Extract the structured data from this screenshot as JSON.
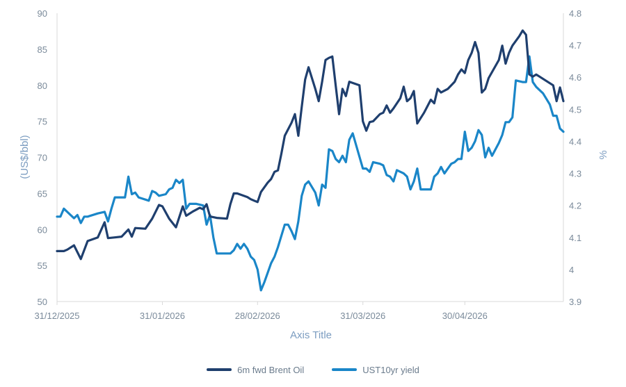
{
  "chart_data": {
    "type": "line",
    "xlabel": "Axis Title",
    "ylabel_left": "(US$/bbl)",
    "ylabel_right": "%",
    "ylim_left": [
      50,
      90
    ],
    "ylim_right": [
      3.9,
      4.8
    ],
    "x_ticks": [
      "31/12/2025",
      "31/01/2026",
      "28/02/2026",
      "31/03/2026",
      "30/04/2026"
    ],
    "y_ticks_left": [
      "50",
      "55",
      "60",
      "65",
      "70",
      "75",
      "80",
      "85",
      "90"
    ],
    "y_ticks_right": [
      "3.9",
      "4",
      "4.1",
      "4.2",
      "4.3",
      "4.4",
      "4.5",
      "4.6",
      "4.7",
      "4.8"
    ],
    "legend_position": "bottom",
    "grid": false,
    "series": [
      {
        "name": "6m fwd Brent Oil",
        "axis": "left",
        "color": "#1f3f6e",
        "points": [
          [
            "31/12/2025",
            57.0
          ],
          [
            "02/01/2026",
            57.0
          ],
          [
            "03/01/2026",
            57.2
          ],
          [
            "05/01/2026",
            57.8
          ],
          [
            "07/01/2026",
            55.9
          ],
          [
            "09/01/2026",
            58.4
          ],
          [
            "12/01/2026",
            58.9
          ],
          [
            "14/01/2026",
            61.0
          ],
          [
            "15/01/2026",
            58.8
          ],
          [
            "17/01/2026",
            58.9
          ],
          [
            "19/01/2026",
            59.0
          ],
          [
            "21/01/2026",
            60.0
          ],
          [
            "22/01/2026",
            59.0
          ],
          [
            "23/01/2026",
            60.2
          ],
          [
            "26/01/2026",
            60.1
          ],
          [
            "28/01/2026",
            61.5
          ],
          [
            "30/01/2026",
            63.4
          ],
          [
            "31/01/2026",
            63.2
          ],
          [
            "02/02/2026",
            61.5
          ],
          [
            "04/02/2026",
            60.3
          ],
          [
            "06/02/2026",
            63.2
          ],
          [
            "07/02/2026",
            61.9
          ],
          [
            "09/02/2026",
            62.5
          ],
          [
            "11/02/2026",
            63.0
          ],
          [
            "12/02/2026",
            62.8
          ],
          [
            "13/02/2026",
            63.5
          ],
          [
            "14/02/2026",
            61.8
          ],
          [
            "16/02/2026",
            61.6
          ],
          [
            "19/02/2026",
            61.5
          ],
          [
            "20/02/2026",
            63.5
          ],
          [
            "21/02/2026",
            65.0
          ],
          [
            "22/02/2026",
            65.0
          ],
          [
            "25/02/2026",
            64.5
          ],
          [
            "26/02/2026",
            64.2
          ],
          [
            "27/02/2026",
            64.0
          ],
          [
            "28/02/2026",
            63.8
          ],
          [
            "01/03/2026",
            65.2
          ],
          [
            "03/03/2026",
            66.5
          ],
          [
            "04/03/2026",
            67.0
          ],
          [
            "05/03/2026",
            68.0
          ],
          [
            "06/03/2026",
            68.2
          ],
          [
            "07/03/2026",
            70.5
          ],
          [
            "08/03/2026",
            73.0
          ],
          [
            "10/03/2026",
            74.8
          ],
          [
            "11/03/2026",
            76.0
          ],
          [
            "12/03/2026",
            73.0
          ],
          [
            "13/03/2026",
            77.0
          ],
          [
            "14/03/2026",
            80.8
          ],
          [
            "15/03/2026",
            82.5
          ],
          [
            "17/03/2026",
            79.5
          ],
          [
            "18/03/2026",
            77.8
          ],
          [
            "19/03/2026",
            80.5
          ],
          [
            "20/03/2026",
            83.5
          ],
          [
            "21/03/2026",
            83.8
          ],
          [
            "22/03/2026",
            84.0
          ],
          [
            "23/03/2026",
            80.0
          ],
          [
            "24/03/2026",
            76.0
          ],
          [
            "25/03/2026",
            79.5
          ],
          [
            "26/03/2026",
            78.5
          ],
          [
            "27/03/2026",
            80.5
          ],
          [
            "30/03/2026",
            80.0
          ],
          [
            "31/03/2026",
            75.0
          ],
          [
            "01/04/2026",
            73.7
          ],
          [
            "02/04/2026",
            74.9
          ],
          [
            "03/04/2026",
            75.0
          ],
          [
            "05/04/2026",
            76.0
          ],
          [
            "06/04/2026",
            76.2
          ],
          [
            "07/04/2026",
            77.2
          ],
          [
            "08/04/2026",
            76.2
          ],
          [
            "09/04/2026",
            76.8
          ],
          [
            "11/04/2026",
            78.2
          ],
          [
            "12/04/2026",
            79.8
          ],
          [
            "13/04/2026",
            77.8
          ],
          [
            "14/04/2026",
            78.2
          ],
          [
            "15/04/2026",
            79.2
          ],
          [
            "16/04/2026",
            74.7
          ],
          [
            "18/04/2026",
            76.2
          ],
          [
            "20/04/2026",
            78.0
          ],
          [
            "21/04/2026",
            77.5
          ],
          [
            "22/04/2026",
            79.5
          ],
          [
            "23/04/2026",
            79.0
          ],
          [
            "25/04/2026",
            79.5
          ],
          [
            "27/04/2026",
            80.5
          ],
          [
            "28/04/2026",
            81.5
          ],
          [
            "29/04/2026",
            82.2
          ],
          [
            "30/04/2026",
            81.7
          ],
          [
            "01/05/2026",
            83.5
          ],
          [
            "02/05/2026",
            84.5
          ],
          [
            "03/05/2026",
            86.0
          ],
          [
            "04/05/2026",
            84.5
          ],
          [
            "05/05/2026",
            79.0
          ],
          [
            "06/05/2026",
            79.5
          ],
          [
            "07/05/2026",
            81.0
          ],
          [
            "10/05/2026",
            83.5
          ],
          [
            "11/05/2026",
            85.5
          ],
          [
            "12/05/2026",
            83.0
          ],
          [
            "13/05/2026",
            84.5
          ],
          [
            "14/05/2026",
            85.5
          ],
          [
            "16/05/2026",
            86.8
          ],
          [
            "17/05/2026",
            87.6
          ],
          [
            "18/05/2026",
            87.0
          ],
          [
            "19/05/2026",
            81.5
          ],
          [
            "20/05/2026",
            81.2
          ],
          [
            "21/05/2026",
            81.5
          ],
          [
            "26/05/2026",
            80.0
          ],
          [
            "27/05/2026",
            77.8
          ],
          [
            "28/05/2026",
            79.7
          ],
          [
            "29/05/2026",
            77.8
          ]
        ]
      },
      {
        "name": "UST10yr yield",
        "axis": "right",
        "color": "#1a86c8",
        "points": [
          [
            "31/12/2025",
            4.165
          ],
          [
            "01/01/2026",
            4.165
          ],
          [
            "02/01/2026",
            4.19
          ],
          [
            "04/01/2026",
            4.17
          ],
          [
            "05/01/2026",
            4.16
          ],
          [
            "06/01/2026",
            4.17
          ],
          [
            "07/01/2026",
            4.145
          ],
          [
            "08/01/2026",
            4.165
          ],
          [
            "09/01/2026",
            4.165
          ],
          [
            "12/01/2026",
            4.175
          ],
          [
            "14/01/2026",
            4.18
          ],
          [
            "15/01/2026",
            4.15
          ],
          [
            "16/01/2026",
            4.19
          ],
          [
            "17/01/2026",
            4.225
          ],
          [
            "19/01/2026",
            4.225
          ],
          [
            "20/01/2026",
            4.225
          ],
          [
            "21/01/2026",
            4.29
          ],
          [
            "22/01/2026",
            4.235
          ],
          [
            "23/01/2026",
            4.24
          ],
          [
            "24/01/2026",
            4.225
          ],
          [
            "27/01/2026",
            4.215
          ],
          [
            "28/01/2026",
            4.245
          ],
          [
            "29/01/2026",
            4.24
          ],
          [
            "30/01/2026",
            4.23
          ],
          [
            "01/02/2026",
            4.235
          ],
          [
            "02/02/2026",
            4.25
          ],
          [
            "03/02/2026",
            4.255
          ],
          [
            "04/02/2026",
            4.28
          ],
          [
            "05/02/2026",
            4.27
          ],
          [
            "06/02/2026",
            4.28
          ],
          [
            "07/02/2026",
            4.19
          ],
          [
            "08/02/2026",
            4.205
          ],
          [
            "10/02/2026",
            4.205
          ],
          [
            "12/02/2026",
            4.2
          ],
          [
            "13/02/2026",
            4.14
          ],
          [
            "14/02/2026",
            4.17
          ],
          [
            "15/02/2026",
            4.1
          ],
          [
            "16/02/2026",
            4.05
          ],
          [
            "18/02/2026",
            4.05
          ],
          [
            "20/02/2026",
            4.05
          ],
          [
            "21/02/2026",
            4.06
          ],
          [
            "22/02/2026",
            4.08
          ],
          [
            "23/02/2026",
            4.065
          ],
          [
            "24/02/2026",
            4.08
          ],
          [
            "25/02/2026",
            4.065
          ],
          [
            "26/02/2026",
            4.04
          ],
          [
            "27/02/2026",
            4.03
          ],
          [
            "28/02/2026",
            4.0
          ],
          [
            "01/03/2026",
            3.935
          ],
          [
            "02/03/2026",
            3.96
          ],
          [
            "04/03/2026",
            4.02
          ],
          [
            "05/03/2026",
            4.04
          ],
          [
            "06/03/2026",
            4.07
          ],
          [
            "08/03/2026",
            4.14
          ],
          [
            "09/03/2026",
            4.14
          ],
          [
            "10/03/2026",
            4.12
          ],
          [
            "11/03/2026",
            4.095
          ],
          [
            "12/03/2026",
            4.15
          ],
          [
            "13/03/2026",
            4.23
          ],
          [
            "14/03/2026",
            4.265
          ],
          [
            "15/03/2026",
            4.275
          ],
          [
            "17/03/2026",
            4.24
          ],
          [
            "18/03/2026",
            4.2
          ],
          [
            "19/03/2026",
            4.265
          ],
          [
            "20/03/2026",
            4.255
          ],
          [
            "21/03/2026",
            4.375
          ],
          [
            "22/03/2026",
            4.37
          ],
          [
            "23/03/2026",
            4.345
          ],
          [
            "24/03/2026",
            4.335
          ],
          [
            "25/03/2026",
            4.355
          ],
          [
            "26/03/2026",
            4.335
          ],
          [
            "27/03/2026",
            4.405
          ],
          [
            "28/03/2026",
            4.425
          ],
          [
            "31/03/2026",
            4.315
          ],
          [
            "01/04/2026",
            4.315
          ],
          [
            "02/04/2026",
            4.305
          ],
          [
            "03/04/2026",
            4.335
          ],
          [
            "05/04/2026",
            4.33
          ],
          [
            "06/04/2026",
            4.325
          ],
          [
            "07/04/2026",
            4.295
          ],
          [
            "08/04/2026",
            4.29
          ],
          [
            "09/04/2026",
            4.275
          ],
          [
            "10/04/2026",
            4.31
          ],
          [
            "12/04/2026",
            4.3
          ],
          [
            "13/04/2026",
            4.29
          ],
          [
            "14/04/2026",
            4.25
          ],
          [
            "15/04/2026",
            4.275
          ],
          [
            "16/04/2026",
            4.315
          ],
          [
            "17/04/2026",
            4.25
          ],
          [
            "18/04/2026",
            4.25
          ],
          [
            "20/04/2026",
            4.25
          ],
          [
            "21/04/2026",
            4.29
          ],
          [
            "22/04/2026",
            4.3
          ],
          [
            "23/04/2026",
            4.32
          ],
          [
            "24/04/2026",
            4.3
          ],
          [
            "25/04/2026",
            4.315
          ],
          [
            "26/04/2026",
            4.33
          ],
          [
            "27/04/2026",
            4.335
          ],
          [
            "28/04/2026",
            4.345
          ],
          [
            "29/04/2026",
            4.345
          ],
          [
            "30/04/2026",
            4.43
          ],
          [
            "01/05/2026",
            4.37
          ],
          [
            "02/05/2026",
            4.38
          ],
          [
            "03/05/2026",
            4.4
          ],
          [
            "04/05/2026",
            4.435
          ],
          [
            "05/05/2026",
            4.42
          ],
          [
            "06/05/2026",
            4.35
          ],
          [
            "07/05/2026",
            4.38
          ],
          [
            "08/05/2026",
            4.355
          ],
          [
            "10/05/2026",
            4.395
          ],
          [
            "11/05/2026",
            4.42
          ],
          [
            "12/05/2026",
            4.46
          ],
          [
            "13/05/2026",
            4.46
          ],
          [
            "14/05/2026",
            4.475
          ],
          [
            "15/05/2026",
            4.59
          ],
          [
            "17/05/2026",
            4.585
          ],
          [
            "18/05/2026",
            4.585
          ],
          [
            "19/05/2026",
            4.665
          ],
          [
            "20/05/2026",
            4.585
          ],
          [
            "21/05/2026",
            4.57
          ],
          [
            "23/05/2026",
            4.55
          ],
          [
            "25/05/2026",
            4.515
          ],
          [
            "26/05/2026",
            4.48
          ],
          [
            "27/05/2026",
            4.48
          ],
          [
            "28/05/2026",
            4.44
          ],
          [
            "29/05/2026",
            4.43
          ]
        ]
      }
    ]
  }
}
